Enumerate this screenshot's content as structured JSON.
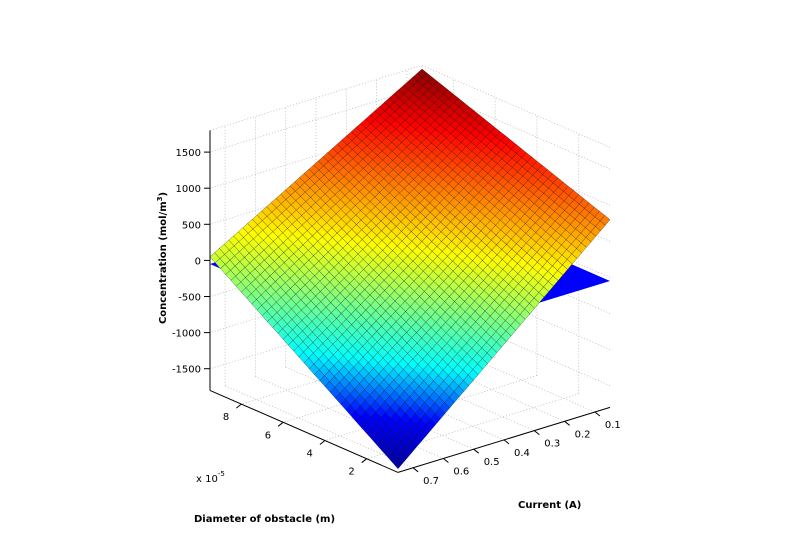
{
  "chart_data": {
    "type": "surface3d",
    "title": "",
    "xlabel": "Current (A)",
    "ylabel": "Diameter of obstacle (m)",
    "zlabel": "Concentration (mol/m",
    "zlabel_sup": "3",
    "zlabel_tail": ")",
    "y_multiplier": "x 10",
    "y_multiplier_exp": "-5",
    "xlim": [
      0.05,
      0.75
    ],
    "ylim": [
      0.5,
      9.5
    ],
    "zlim": [
      -1800,
      1800
    ],
    "x_ticks": [
      "0.1",
      "0.2",
      "0.3",
      "0.4",
      "0.5",
      "0.6",
      "0.7"
    ],
    "y_ticks": [
      "2",
      "4",
      "6",
      "8"
    ],
    "z_ticks": [
      "-1500",
      "-1000",
      "-500",
      "0",
      "500",
      "1000",
      "1500"
    ],
    "grid": true,
    "colormap": [
      "#00008f",
      "#0000ff",
      "#00ffff",
      "#80ff80",
      "#ffff00",
      "#ff8000",
      "#ff0000",
      "#800000"
    ],
    "colormap_range": [
      -1800,
      1800
    ],
    "series": [
      {
        "style": "meshed surface",
        "mesh_counts": [
          45,
          36
        ],
        "corners": [
          {
            "x": 0.05,
            "y": 9.5,
            "z": 1750
          },
          {
            "x": 0.05,
            "y": 0.5,
            "z": 800
          },
          {
            "x": 0.75,
            "y": 9.5,
            "z": 50
          },
          {
            "x": 0.75,
            "y": 0.5,
            "z": -1750
          }
        ]
      },
      {
        "style": "flat sheet",
        "color": "#0000ff",
        "corners": [
          {
            "x": 0.05,
            "y": 9.5,
            "z": -50
          },
          {
            "x": 0.05,
            "y": 0.5,
            "z": -50
          },
          {
            "x": 0.75,
            "y": 9.5,
            "z": -50
          },
          {
            "x": 0.75,
            "y": 0.5,
            "z": -50
          }
        ]
      }
    ]
  }
}
